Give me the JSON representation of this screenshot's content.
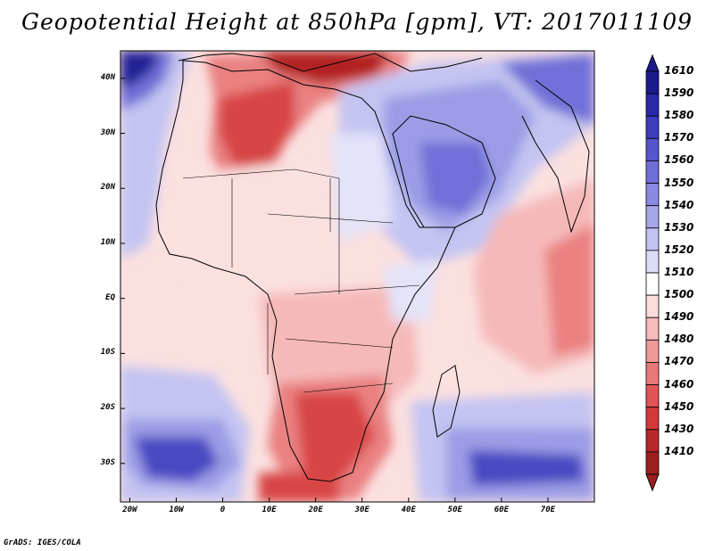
{
  "title": "Geopotential Height at 850hPa [gpm], VT: 2017011109",
  "credit": "GrADS: IGES/COLA",
  "map": {
    "lat_labels": [
      "40N",
      "30N",
      "20N",
      "10N",
      "EQ",
      "10S",
      "20S",
      "30S"
    ],
    "lat_values": [
      40,
      30,
      20,
      10,
      0,
      -10,
      -20,
      -30
    ],
    "lon_labels": [
      "20W",
      "10W",
      "0",
      "10E",
      "20E",
      "30E",
      "40E",
      "50E",
      "60E",
      "70E"
    ],
    "lon_values": [
      -20,
      -10,
      0,
      10,
      20,
      30,
      40,
      50,
      60,
      70
    ],
    "lat_range": [
      -37,
      45
    ],
    "lon_range": [
      -22,
      80
    ]
  },
  "colorbar": {
    "levels": [
      1410,
      1430,
      1450,
      1460,
      1470,
      1480,
      1490,
      1500,
      1510,
      1520,
      1530,
      1540,
      1550,
      1560,
      1570,
      1580,
      1590,
      1610
    ],
    "colors": [
      "#9c1f1f",
      "#b8282b",
      "#d23a3a",
      "#e05555",
      "#e97878",
      "#f19999",
      "#f7baba",
      "#fbdcdc",
      "#ffffff",
      "#dcdcf8",
      "#c2c2f2",
      "#a6a6ea",
      "#8a8ae2",
      "#6f6fd8",
      "#5555cc",
      "#3c3cbc",
      "#2828a8",
      "#1a1a8c"
    ]
  },
  "field_colors": {
    "deep_red": "#b32424",
    "red": "#d84545",
    "mid_red": "#ea8181",
    "light_red": "#f6b9b9",
    "pale_red": "#fbe0e0",
    "white": "#ffffff",
    "pale_blue": "#e3e3f9",
    "light_blue": "#c4c4f2",
    "mid_blue": "#9c9ce6",
    "blue": "#7070d8",
    "dark_blue": "#4a4ac2",
    "navy": "#222296"
  }
}
